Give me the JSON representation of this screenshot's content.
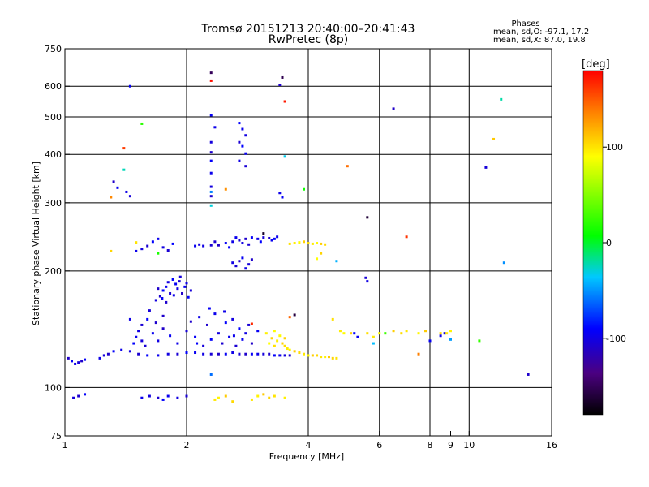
{
  "chart_data": {
    "type": "scatter",
    "title": "Tromsø 20151213 20:40:00–20:41:43",
    "subtitle": "RwPretec (8p)",
    "stats": {
      "heading": "Phases",
      "line1": "mean, sd,O: -97.1, 17.2",
      "line2": "mean, sd,X:  87.0, 19.8"
    },
    "xlabel": "Frequency [MHz]",
    "ylabel": "Stationary phase Virtual Height [km]",
    "xscale": "log",
    "yscale": "log",
    "xlim": [
      1,
      16
    ],
    "ylim": [
      75,
      750
    ],
    "x_ticks": [
      1,
      2,
      4,
      6,
      8,
      9,
      10,
      16
    ],
    "x_tick_labels": [
      "1",
      "2",
      "4",
      "6",
      "8",
      "9",
      "10",
      "16"
    ],
    "x_gridlines": [
      2,
      4,
      6,
      8,
      10
    ],
    "y_ticks": [
      75,
      100,
      200,
      300,
      400,
      500,
      600,
      750
    ],
    "y_tick_labels": [
      "75",
      "100",
      "200",
      "300",
      "400",
      "500",
      "600",
      "750"
    ],
    "y_gridlines": [
      100,
      200,
      300,
      400,
      500,
      600
    ],
    "grid": true,
    "colorbar": {
      "label": "[deg]",
      "range": [
        -180,
        180
      ],
      "ticks": [
        100,
        0,
        -100
      ],
      "tick_labels": [
        "100",
        "0",
        "-100"
      ]
    },
    "series": [
      {
        "description": "O-mode echoes (phase near -100 deg)",
        "phase_deg": -100,
        "points": [
          [
            1.02,
            119
          ],
          [
            1.04,
            117
          ],
          [
            1.06,
            115
          ],
          [
            1.08,
            116
          ],
          [
            1.1,
            117
          ],
          [
            1.12,
            118
          ],
          [
            1.22,
            119
          ],
          [
            1.25,
            121
          ],
          [
            1.28,
            122
          ],
          [
            1.32,
            124
          ],
          [
            1.38,
            125
          ],
          [
            1.45,
            124
          ],
          [
            1.52,
            122
          ],
          [
            1.6,
            121
          ],
          [
            1.7,
            121
          ],
          [
            1.8,
            122
          ],
          [
            1.9,
            122
          ],
          [
            2.0,
            123
          ],
          [
            2.1,
            123
          ],
          [
            2.2,
            122
          ],
          [
            2.3,
            122
          ],
          [
            2.4,
            122
          ],
          [
            2.5,
            122
          ],
          [
            2.6,
            123
          ],
          [
            2.7,
            122
          ],
          [
            2.8,
            122
          ],
          [
            2.9,
            122
          ],
          [
            3.0,
            122
          ],
          [
            3.1,
            122
          ],
          [
            3.2,
            122
          ],
          [
            3.3,
            121
          ],
          [
            3.4,
            121
          ],
          [
            3.5,
            121
          ],
          [
            3.6,
            121
          ],
          [
            1.48,
            130
          ],
          [
            1.5,
            135
          ],
          [
            1.52,
            140
          ],
          [
            1.55,
            145
          ],
          [
            1.6,
            150
          ],
          [
            1.65,
            138
          ],
          [
            1.7,
            132
          ],
          [
            1.58,
            128
          ],
          [
            1.75,
            142
          ],
          [
            1.82,
            136
          ],
          [
            1.9,
            130
          ],
          [
            2.0,
            140
          ],
          [
            2.05,
            148
          ],
          [
            2.1,
            135
          ],
          [
            2.15,
            152
          ],
          [
            2.2,
            128
          ],
          [
            2.25,
            145
          ],
          [
            2.3,
            133
          ],
          [
            2.35,
            155
          ],
          [
            2.4,
            138
          ],
          [
            2.45,
            130
          ],
          [
            2.5,
            147
          ],
          [
            2.55,
            135
          ],
          [
            2.6,
            150
          ],
          [
            2.65,
            128
          ],
          [
            2.7,
            142
          ],
          [
            2.75,
            133
          ],
          [
            2.8,
            138
          ],
          [
            2.85,
            145
          ],
          [
            2.9,
            130
          ],
          [
            3.0,
            140
          ],
          [
            1.45,
            150
          ],
          [
            1.62,
            158
          ],
          [
            1.75,
            153
          ],
          [
            2.28,
            160
          ],
          [
            2.48,
            157
          ],
          [
            1.55,
            132
          ],
          [
            1.68,
            147
          ],
          [
            2.12,
            130
          ],
          [
            2.62,
            136
          ],
          [
            1.68,
            168
          ],
          [
            1.72,
            172
          ],
          [
            1.75,
            178
          ],
          [
            1.78,
            182
          ],
          [
            1.8,
            187
          ],
          [
            1.82,
            175
          ],
          [
            1.85,
            190
          ],
          [
            1.88,
            185
          ],
          [
            1.9,
            180
          ],
          [
            1.92,
            188
          ],
          [
            1.95,
            175
          ],
          [
            1.98,
            182
          ],
          [
            2.0,
            186
          ],
          [
            2.05,
            178
          ],
          [
            1.7,
            180
          ],
          [
            1.74,
            170
          ],
          [
            1.86,
            173
          ],
          [
            1.93,
            193
          ],
          [
            1.78,
            166
          ],
          [
            2.02,
            171
          ],
          [
            1.5,
            225
          ],
          [
            1.55,
            228
          ],
          [
            1.6,
            232
          ],
          [
            1.65,
            238
          ],
          [
            1.7,
            242
          ],
          [
            1.75,
            230
          ],
          [
            1.8,
            226
          ],
          [
            1.85,
            235
          ],
          [
            2.1,
            232
          ],
          [
            2.2,
            232
          ],
          [
            2.3,
            233
          ],
          [
            2.4,
            233
          ],
          [
            2.5,
            236
          ],
          [
            2.6,
            238
          ],
          [
            2.7,
            240
          ],
          [
            2.8,
            242
          ],
          [
            2.9,
            244
          ],
          [
            3.0,
            242
          ],
          [
            3.1,
            244
          ],
          [
            3.2,
            243
          ],
          [
            3.3,
            242
          ],
          [
            3.35,
            245
          ],
          [
            2.15,
            234
          ],
          [
            2.35,
            238
          ],
          [
            2.55,
            230
          ],
          [
            2.65,
            244
          ],
          [
            2.75,
            236
          ],
          [
            2.85,
            234
          ],
          [
            3.05,
            238
          ],
          [
            3.25,
            240
          ],
          [
            2.6,
            210
          ],
          [
            2.65,
            206
          ],
          [
            2.7,
            212
          ],
          [
            2.75,
            216
          ],
          [
            2.8,
            203
          ],
          [
            2.85,
            208
          ],
          [
            2.9,
            214
          ],
          [
            2.3,
            505
          ],
          [
            2.35,
            470
          ],
          [
            2.3,
            430
          ],
          [
            2.3,
            405
          ],
          [
            2.3,
            385
          ],
          [
            2.3,
            358
          ],
          [
            2.3,
            330
          ],
          [
            2.3,
            312
          ],
          [
            2.7,
            482
          ],
          [
            2.75,
            465
          ],
          [
            2.8,
            448
          ],
          [
            2.7,
            430
          ],
          [
            2.75,
            420
          ],
          [
            2.8,
            402
          ],
          [
            2.7,
            385
          ],
          [
            2.8,
            373
          ],
          [
            1.32,
            340
          ],
          [
            1.35,
            328
          ],
          [
            1.42,
            320
          ],
          [
            1.45,
            312
          ],
          [
            3.4,
            605
          ],
          [
            3.45,
            310
          ],
          [
            3.4,
            318
          ],
          [
            1.05,
            94
          ],
          [
            1.08,
            95
          ],
          [
            1.12,
            96
          ],
          [
            1.55,
            94
          ],
          [
            1.62,
            95
          ],
          [
            1.7,
            94
          ],
          [
            1.75,
            93
          ],
          [
            1.8,
            95
          ],
          [
            1.9,
            94
          ],
          [
            2.0,
            95
          ],
          [
            5.2,
            138
          ],
          [
            5.3,
            135
          ],
          [
            5.6,
            188
          ],
          [
            5.55,
            192
          ],
          [
            6.5,
            525
          ],
          [
            8.0,
            132
          ],
          [
            8.5,
            136
          ],
          [
            11.0,
            370
          ],
          [
            14.0,
            108
          ],
          [
            1.45,
            600
          ],
          [
            8.7,
            138
          ]
        ]
      },
      {
        "description": "X-mode echoes (phase near +100 deg)",
        "phase_deg": 100,
        "points": [
          [
            3.2,
            130
          ],
          [
            3.25,
            134
          ],
          [
            3.3,
            128
          ],
          [
            3.35,
            132
          ],
          [
            3.4,
            136
          ],
          [
            3.45,
            130
          ],
          [
            3.5,
            128
          ],
          [
            3.55,
            126
          ],
          [
            3.6,
            125
          ],
          [
            3.7,
            124
          ],
          [
            3.8,
            123
          ],
          [
            3.9,
            122
          ],
          [
            4.0,
            121
          ],
          [
            4.1,
            121
          ],
          [
            4.2,
            121
          ],
          [
            4.3,
            120
          ],
          [
            4.4,
            120
          ],
          [
            4.5,
            120
          ],
          [
            4.6,
            119
          ],
          [
            4.7,
            119
          ],
          [
            3.15,
            138
          ],
          [
            3.3,
            140
          ],
          [
            3.5,
            134
          ],
          [
            3.6,
            235
          ],
          [
            3.7,
            236
          ],
          [
            3.8,
            237
          ],
          [
            3.9,
            238
          ],
          [
            4.0,
            236
          ],
          [
            4.1,
            235
          ],
          [
            4.2,
            236
          ],
          [
            4.3,
            235
          ],
          [
            4.4,
            234
          ],
          [
            2.35,
            93
          ],
          [
            2.4,
            94
          ],
          [
            2.5,
            95
          ],
          [
            2.6,
            92
          ],
          [
            2.9,
            93
          ],
          [
            3.0,
            95
          ],
          [
            3.1,
            96
          ],
          [
            3.2,
            94
          ],
          [
            3.3,
            95
          ],
          [
            3.5,
            94
          ],
          [
            4.2,
            215
          ],
          [
            4.3,
            222
          ],
          [
            4.6,
            150
          ],
          [
            4.8,
            140
          ],
          [
            4.9,
            138
          ],
          [
            5.1,
            138
          ],
          [
            5.6,
            138
          ],
          [
            5.8,
            135
          ],
          [
            6.0,
            138
          ],
          [
            6.5,
            140
          ],
          [
            6.8,
            138
          ],
          [
            7.0,
            140
          ],
          [
            7.5,
            138
          ],
          [
            7.8,
            140
          ],
          [
            8.5,
            138
          ],
          [
            8.8,
            138
          ],
          [
            9.0,
            140
          ],
          [
            11.5,
            438
          ],
          [
            1.3,
            225
          ],
          [
            1.5,
            237
          ]
        ]
      },
      {
        "description": "Scattered echoes (other phases)",
        "phases_deg": [
          170,
          -30,
          20,
          -50,
          140,
          -160
        ],
        "points": [
          [
            1.4,
            415
          ],
          [
            1.4,
            365
          ],
          [
            1.55,
            480
          ],
          [
            2.3,
            320
          ],
          [
            2.5,
            325
          ],
          [
            3.45,
            632
          ],
          [
            3.5,
            548
          ],
          [
            3.5,
            395
          ],
          [
            3.9,
            325
          ],
          [
            4.7,
            212
          ],
          [
            5.0,
            373
          ],
          [
            5.6,
            275
          ],
          [
            7.0,
            245
          ],
          [
            12.0,
            555
          ],
          [
            10.6,
            132
          ],
          [
            12.2,
            210
          ],
          [
            1.3,
            310
          ],
          [
            2.3,
            650
          ],
          [
            2.3,
            620
          ],
          [
            2.3,
            295
          ],
          [
            1.7,
            222
          ],
          [
            2.3,
            108
          ],
          [
            3.6,
            152
          ],
          [
            3.7,
            154
          ],
          [
            2.9,
            146
          ],
          [
            5.8,
            130
          ],
          [
            6.2,
            138
          ],
          [
            9.0,
            133
          ],
          [
            7.5,
            122
          ],
          [
            3.1,
            250
          ]
        ]
      }
    ]
  }
}
